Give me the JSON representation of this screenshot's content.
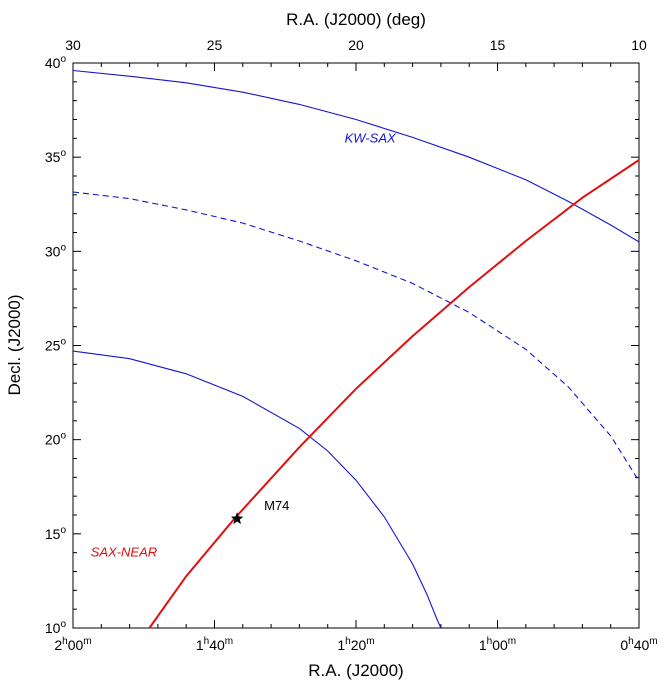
{
  "chart_data": {
    "type": "line",
    "title": "",
    "axes": {
      "bottom": {
        "label": "R.A. (J2000)",
        "range_deg": [
          30,
          10
        ],
        "ticks": [
          {
            "deg": 30,
            "h": "2",
            "m": "00"
          },
          {
            "deg": 25,
            "h": "1",
            "m": "40"
          },
          {
            "deg": 20,
            "h": "1",
            "m": "20"
          },
          {
            "deg": 15,
            "h": "1",
            "m": "00"
          },
          {
            "deg": 10,
            "h": "0",
            "m": "40"
          }
        ]
      },
      "top": {
        "label": "R.A. (J2000) (deg)",
        "range_deg": [
          30,
          10
        ],
        "ticks": [
          "30",
          "25",
          "20",
          "15",
          "10"
        ]
      },
      "left": {
        "label": "Decl. (J2000)",
        "range_deg": [
          10,
          40
        ],
        "ticks": [
          {
            "deg": 10,
            "text": "10"
          },
          {
            "deg": 15,
            "text": "15"
          },
          {
            "deg": 20,
            "text": "20"
          },
          {
            "deg": 25,
            "text": "25"
          },
          {
            "deg": 30,
            "text": "30"
          },
          {
            "deg": 35,
            "text": "35"
          },
          {
            "deg": 40,
            "text": "40"
          }
        ],
        "degree_symbol": "o"
      }
    },
    "series": [
      {
        "name": "KW-SAX",
        "color": "#1414d2",
        "style": "solid",
        "x": [
          30.0,
          28.0,
          26.0,
          24.0,
          22.0,
          20.0,
          18.0,
          16.0,
          14.0,
          12.5,
          11.0,
          10.0
        ],
        "y": [
          39.6,
          39.3,
          38.95,
          38.45,
          37.8,
          37.0,
          36.05,
          35.0,
          33.8,
          32.65,
          31.4,
          30.5
        ]
      },
      {
        "name": "",
        "color": "#1414d2",
        "style": "dashed",
        "x": [
          30.0,
          28.0,
          26.0,
          24.0,
          22.0,
          20.0,
          18.0,
          16.0,
          14.0,
          12.5,
          11.0,
          10.0
        ],
        "y": [
          33.15,
          32.8,
          32.2,
          31.5,
          30.55,
          29.5,
          28.3,
          26.75,
          24.8,
          22.8,
          20.2,
          17.8
        ]
      },
      {
        "name": "",
        "color": "#1414d2",
        "style": "solid",
        "x": [
          30.0,
          28.0,
          26.0,
          24.0,
          22.0,
          21.0,
          20.0,
          19.0,
          18.0,
          17.5,
          17.15,
          17.0
        ],
        "y": [
          24.7,
          24.3,
          23.5,
          22.3,
          20.6,
          19.4,
          17.85,
          15.9,
          13.4,
          11.8,
          10.5,
          10.0
        ]
      },
      {
        "name": "SAX-NEAR",
        "color": "#e01010",
        "style": "solid",
        "x": [
          27.3,
          26.0,
          24.3,
          22.0,
          20.0,
          18.0,
          16.0,
          14.0,
          12.0,
          10.0
        ],
        "y": [
          10.0,
          12.75,
          15.8,
          19.6,
          22.7,
          25.5,
          28.1,
          30.55,
          32.85,
          34.85
        ]
      }
    ],
    "markers": [
      {
        "label": "M74",
        "x": 24.2,
        "y": 15.8,
        "symbol": "star"
      }
    ],
    "annotations": [
      {
        "text": "KW-SAX",
        "x": 19.5,
        "y": 36.0,
        "color": "#1414d2"
      },
      {
        "text": "SAX-NEAR",
        "x": 28.2,
        "y": 14.0,
        "color": "#e01010"
      }
    ]
  }
}
